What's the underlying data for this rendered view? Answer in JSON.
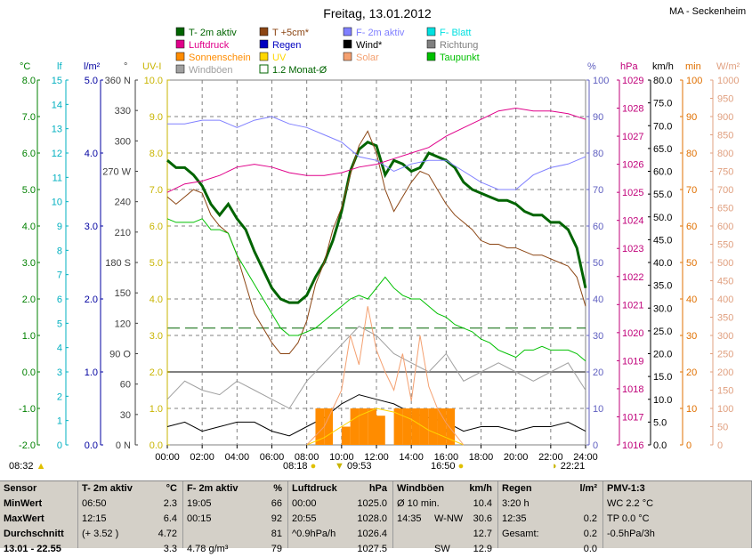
{
  "title": "Freitag, 13.01.2012",
  "station": "MA - Seckenheim",
  "legend": [
    {
      "label": "T- 2m aktiv",
      "color": "#006400",
      "type": "fill"
    },
    {
      "label": "T +5cm*",
      "color": "#8b4513",
      "type": "fill"
    },
    {
      "label": "F- 2m aktiv",
      "color": "#8080ff",
      "type": "fill"
    },
    {
      "label": "F- Blatt",
      "color": "#00e0e0",
      "type": "fill"
    },
    {
      "label": "Luftdruck",
      "color": "#e0008a",
      "type": "fill"
    },
    {
      "label": "Regen",
      "color": "#0000c0",
      "type": "fill"
    },
    {
      "label": "Wind*",
      "color": "#000000",
      "type": "fill"
    },
    {
      "label": "Richtung",
      "color": "#808080",
      "type": "fill"
    },
    {
      "label": "Sonnenschein",
      "color": "#ff8c00",
      "type": "fill"
    },
    {
      "label": "UV",
      "color": "#ffd700",
      "type": "fill"
    },
    {
      "label": "Solar",
      "color": "#f4a070",
      "type": "fill"
    },
    {
      "label": "Taupunkt",
      "color": "#00c000",
      "type": "fill"
    },
    {
      "label": "Windböen",
      "color": "#a0a0a0",
      "type": "fill"
    },
    {
      "label": "1.2 Monat-Ø",
      "color": "#006400",
      "type": "outline"
    }
  ],
  "axes": {
    "temp": {
      "unit": "°C",
      "color": "#008000",
      "ticks": [
        "8.0",
        "7.0",
        "6.0",
        "5.0",
        "4.0",
        "3.0",
        "2.0",
        "1.0",
        "0.0",
        "-1.0",
        "-2.0"
      ]
    },
    "leaf": {
      "unit": "lf",
      "color": "#00b0c0",
      "ticks": [
        "15",
        "14",
        "13",
        "12",
        "11",
        "10",
        "9",
        "8",
        "7",
        "6",
        "5",
        "4",
        "3",
        "2",
        "1",
        "0"
      ]
    },
    "rain": {
      "unit": "l/m²",
      "color": "#0000a0",
      "ticks": [
        "5.0",
        "4.0",
        "3.0",
        "2.0",
        "1.0",
        "0.0"
      ]
    },
    "dir": {
      "unit": "°",
      "color": "#404040",
      "ticks": [
        "360 N",
        "330",
        "300",
        "270 W",
        "240",
        "210",
        "180 S",
        "150",
        "120",
        "90  O",
        "60",
        "30",
        "0    N"
      ]
    },
    "uv": {
      "unit": "UV-I",
      "color": "#c8b400",
      "ticks": [
        "10.0",
        "9.0",
        "8.0",
        "7.0",
        "6.0",
        "5.0",
        "4.0",
        "3.0",
        "2.0",
        "1.0",
        "0.0"
      ]
    },
    "hum": {
      "unit": "%",
      "color": "#6060c0",
      "ticks": [
        "100",
        "90",
        "80",
        "70",
        "60",
        "50",
        "40",
        "30",
        "20",
        "10",
        "0"
      ]
    },
    "press": {
      "unit": "hPa",
      "color": "#c0007a",
      "ticks": [
        "1029",
        "1028",
        "1027",
        "1026",
        "1025",
        "1024",
        "1023",
        "1022",
        "1021",
        "1020",
        "1019",
        "1018",
        "1017",
        "1016"
      ]
    },
    "wind": {
      "unit": "km/h",
      "color": "#000000",
      "ticks": [
        "80.0",
        "75.0",
        "70.0",
        "65.0",
        "60.0",
        "55.0",
        "50.0",
        "45.0",
        "40.0",
        "35.0",
        "30.0",
        "25.0",
        "20.0",
        "15.0",
        "10.0",
        "5.0",
        "0.0"
      ]
    },
    "min": {
      "unit": "min",
      "color": "#e07000",
      "ticks": [
        "100",
        "90",
        "80",
        "70",
        "60",
        "50",
        "40",
        "30",
        "20",
        "10",
        "0"
      ]
    },
    "solar": {
      "unit": "W/m²",
      "color": "#e0a080",
      "ticks": [
        "1000",
        "950",
        "900",
        "850",
        "800",
        "750",
        "700",
        "650",
        "600",
        "550",
        "500",
        "450",
        "400",
        "350",
        "300",
        "250",
        "200",
        "150",
        "100",
        "50",
        "0"
      ]
    },
    "time": {
      "ticks": [
        "00:00",
        "02:00",
        "04:00",
        "06:00",
        "08:00",
        "10:00",
        "12:00",
        "14:00",
        "16:00",
        "18:00",
        "20:00",
        "22:00",
        "24:00"
      ]
    }
  },
  "sun": {
    "sunrise": "08:32",
    "sunset": "16:50",
    "t1": "08:18",
    "t2": "09:53",
    "t3": "22:21"
  },
  "chart_data": {
    "type": "line",
    "title": "Freitag, 13.01.2012",
    "xlabel": "",
    "xlim": [
      0,
      24
    ],
    "series": [
      {
        "name": "T- 2m aktiv",
        "unit": "°C",
        "ylim": [
          -2,
          8
        ],
        "x": [
          0,
          0.5,
          1,
          1.5,
          2,
          2.5,
          3,
          3.5,
          4,
          4.5,
          5,
          5.5,
          6,
          6.5,
          7,
          7.5,
          8,
          8.5,
          9,
          9.5,
          10,
          10.5,
          11,
          11.5,
          12,
          12.5,
          13,
          13.5,
          14,
          14.5,
          15,
          15.5,
          16,
          16.5,
          17,
          17.5,
          18,
          18.5,
          19,
          19.5,
          20,
          20.5,
          21,
          21.5,
          22,
          22.5,
          23,
          23.5,
          24
        ],
        "y": [
          5.8,
          5.6,
          5.6,
          5.4,
          5.1,
          4.6,
          4.3,
          4.6,
          4.2,
          3.9,
          3.3,
          2.8,
          2.3,
          2.0,
          1.9,
          1.9,
          2.1,
          2.6,
          3.0,
          3.6,
          4.4,
          5.5,
          6.1,
          6.3,
          6.2,
          5.4,
          5.8,
          5.7,
          5.5,
          5.6,
          6.0,
          5.9,
          5.8,
          5.6,
          5.2,
          5.0,
          4.9,
          4.8,
          4.7,
          4.7,
          4.6,
          4.4,
          4.3,
          4.3,
          4.1,
          4.1,
          3.9,
          3.4,
          2.3
        ]
      },
      {
        "name": "T +5cm*",
        "unit": "°C",
        "ylim": [
          -2,
          8
        ],
        "x": [
          0,
          0.5,
          1,
          1.5,
          2,
          2.5,
          3,
          3.5,
          4,
          4.5,
          5,
          5.5,
          6,
          6.5,
          7,
          7.5,
          8,
          8.5,
          9,
          9.5,
          10,
          10.5,
          11,
          11.5,
          12,
          12.5,
          13,
          13.5,
          14,
          14.5,
          15,
          15.5,
          16,
          16.5,
          17,
          17.5,
          18,
          18.5,
          19,
          19.5,
          20,
          20.5,
          21,
          21.5,
          22,
          22.5,
          23,
          23.5,
          24
        ],
        "y": [
          4.8,
          4.6,
          4.8,
          5.0,
          4.9,
          4.3,
          4.0,
          3.8,
          3.2,
          2.4,
          1.6,
          1.2,
          0.8,
          0.5,
          0.5,
          0.8,
          1.4,
          2.4,
          3.0,
          3.9,
          4.5,
          5.4,
          6.2,
          6.6,
          6.0,
          5.0,
          4.4,
          4.8,
          5.2,
          5.5,
          5.4,
          5.0,
          4.6,
          4.3,
          4.1,
          3.9,
          3.6,
          3.5,
          3.5,
          3.4,
          3.4,
          3.3,
          3.2,
          3.2,
          3.1,
          3.0,
          2.9,
          2.6,
          1.8
        ]
      },
      {
        "name": "Taupunkt",
        "unit": "°C",
        "ylim": [
          -2,
          8
        ],
        "x": [
          0,
          0.5,
          1,
          1.5,
          2,
          2.5,
          3,
          3.5,
          4,
          4.5,
          5,
          5.5,
          6,
          6.5,
          7,
          7.5,
          8,
          8.5,
          9,
          9.5,
          10,
          10.5,
          11,
          11.5,
          12,
          12.5,
          13,
          13.5,
          14,
          14.5,
          15,
          15.5,
          16,
          16.5,
          17,
          17.5,
          18,
          18.5,
          19,
          19.5,
          20,
          20.5,
          21,
          21.5,
          22,
          22.5,
          23,
          23.5,
          24
        ],
        "y": [
          4.2,
          4.1,
          4.1,
          4.1,
          4.2,
          3.9,
          3.9,
          3.8,
          3.2,
          2.8,
          2.4,
          2.0,
          1.6,
          1.2,
          1.0,
          1.0,
          1.1,
          1.2,
          1.4,
          1.6,
          1.8,
          2.0,
          2.1,
          2.0,
          2.3,
          2.6,
          2.3,
          2.1,
          2.0,
          2.0,
          1.8,
          1.6,
          1.5,
          1.3,
          1.2,
          1.1,
          0.9,
          0.8,
          0.6,
          0.5,
          0.4,
          0.6,
          0.6,
          0.7,
          0.6,
          0.6,
          0.6,
          0.5,
          0.3
        ]
      },
      {
        "name": "F- 2m aktiv",
        "unit": "%",
        "ylim": [
          0,
          100
        ],
        "x": [
          0,
          1,
          2,
          3,
          4,
          5,
          6,
          7,
          8,
          9,
          10,
          11,
          12,
          13,
          14,
          15,
          16,
          17,
          18,
          19,
          20,
          21,
          22,
          23,
          24
        ],
        "y": [
          88,
          88,
          89,
          89,
          87,
          89,
          90,
          88,
          87,
          85,
          83,
          79,
          78,
          75,
          77,
          78,
          78,
          75,
          72,
          70,
          70,
          74,
          76,
          77,
          79
        ]
      },
      {
        "name": "Luftdruck",
        "unit": "hPa",
        "ylim": [
          1016,
          1029
        ],
        "x": [
          0,
          1,
          2,
          3,
          4,
          5,
          6,
          7,
          8,
          9,
          10,
          11,
          12,
          13,
          14,
          15,
          16,
          17,
          18,
          19,
          20,
          21,
          22,
          23,
          24
        ],
        "y": [
          1025.0,
          1025.3,
          1025.4,
          1025.6,
          1025.9,
          1026.0,
          1025.9,
          1025.7,
          1025.6,
          1025.6,
          1025.7,
          1025.9,
          1026.0,
          1026.2,
          1026.4,
          1026.6,
          1027.0,
          1027.3,
          1027.6,
          1027.9,
          1028.0,
          1027.9,
          1027.9,
          1027.8,
          1027.6
        ]
      },
      {
        "name": "Wind*",
        "unit": "km/h",
        "ylim": [
          0,
          80
        ],
        "x": [
          0,
          1,
          2,
          3,
          4,
          5,
          6,
          7,
          8,
          9,
          10,
          11,
          12,
          13,
          14,
          15,
          16,
          17,
          18,
          19,
          20,
          21,
          22,
          23,
          24
        ],
        "y": [
          4,
          5,
          3,
          4,
          5,
          5,
          3,
          2,
          4,
          6,
          9,
          11,
          10,
          9,
          7,
          6,
          5,
          3,
          4,
          4,
          3,
          4,
          4,
          5,
          3
        ]
      },
      {
        "name": "Windböen",
        "unit": "km/h",
        "ylim": [
          0,
          80
        ],
        "x": [
          0,
          1,
          2,
          3,
          4,
          5,
          6,
          7,
          8,
          9,
          10,
          11,
          12,
          13,
          14,
          15,
          16,
          17,
          18,
          19,
          20,
          21,
          22,
          23,
          24
        ],
        "y": [
          10,
          14,
          12,
          11,
          14,
          12,
          10,
          8,
          14,
          18,
          22,
          26,
          24,
          20,
          18,
          16,
          20,
          14,
          16,
          18,
          16,
          14,
          16,
          18,
          12
        ]
      },
      {
        "name": "Sonnenschein",
        "unit": "min",
        "ylim": [
          0,
          100
        ],
        "x": [
          8.5,
          9,
          9.5,
          10,
          10.5,
          11,
          11.5,
          12,
          12.5,
          13,
          13.5,
          14,
          14.5,
          15,
          15.5,
          16,
          16.5
        ],
        "y": [
          10,
          10,
          0,
          5,
          10,
          10,
          10,
          8,
          0,
          10,
          10,
          10,
          10,
          10,
          10,
          10,
          10
        ]
      },
      {
        "name": "UV",
        "unit": "UV-I",
        "ylim": [
          0,
          10
        ],
        "x": [
          8,
          9,
          10,
          11,
          12,
          13,
          14,
          15,
          16,
          17
        ],
        "y": [
          0,
          0.2,
          0.5,
          0.8,
          1.0,
          0.9,
          0.7,
          0.4,
          0.2,
          0
        ]
      },
      {
        "name": "Solar",
        "unit": "W/m²",
        "ylim": [
          0,
          1000
        ],
        "x": [
          8,
          9,
          10,
          10.5,
          11,
          11.5,
          12,
          12.5,
          13,
          13.5,
          14,
          14.5,
          15,
          15.5,
          16,
          17
        ],
        "y": [
          0,
          50,
          150,
          300,
          220,
          380,
          260,
          200,
          150,
          250,
          120,
          300,
          160,
          100,
          60,
          0
        ]
      }
    ],
    "grid": true,
    "legend": "top"
  },
  "stats": [
    {
      "header": "Sensor",
      "unit": "",
      "rows": [
        {
          "l": "MinWert"
        },
        {
          "l": "MaxWert"
        },
        {
          "l": "Durchschnitt"
        },
        {
          "l": "13.01 - 22.55"
        }
      ]
    },
    {
      "header": "T- 2m aktiv",
      "unit": "°C",
      "rows": [
        {
          "l": "06:50",
          "r": "2.3"
        },
        {
          "l": "12:15",
          "r": "6.4"
        },
        {
          "l": "(+ 3.52 )",
          "r": "4.72"
        },
        {
          "l": "",
          "r": "3.3"
        }
      ]
    },
    {
      "header": "F- 2m aktiv",
      "unit": "%",
      "rows": [
        {
          "l": "19:05",
          "r": "66"
        },
        {
          "l": "00:15",
          "r": "92"
        },
        {
          "l": "",
          "r": "81"
        },
        {
          "l": "4.78 g/m³",
          "r": "79"
        }
      ]
    },
    {
      "header": "Luftdruck",
      "unit": "hPa",
      "rows": [
        {
          "l": "00:00",
          "r": "1025.0"
        },
        {
          "l": "20:55",
          "r": "1028.0"
        },
        {
          "l": "^0.9hPa/h",
          "r": "1026.4"
        },
        {
          "l": "",
          "r": "1027.5"
        }
      ]
    },
    {
      "header": "Windböen",
      "unit": "km/h",
      "rows": [
        {
          "l": "Ø 10 min.",
          "r": "10.4"
        },
        {
          "l": "14:35",
          "m": "W-NW",
          "r": "30.6"
        },
        {
          "l": "",
          "r": "12.7"
        },
        {
          "l": "",
          "m": "SW",
          "r": "12.9"
        }
      ]
    },
    {
      "header": "Regen",
      "unit": "l/m²",
      "rows": [
        {
          "l": "3:20 h",
          "r": ""
        },
        {
          "l": "12:35",
          "r": "0.2"
        },
        {
          "l": "Gesamt:",
          "r": "0.2"
        },
        {
          "l": "",
          "r": "0.0"
        }
      ]
    },
    {
      "header": "PMV-1:3",
      "unit": "",
      "rows": [
        {
          "l": "WC 2.2 °C"
        },
        {
          "l": "TP 0.0 °C"
        },
        {
          "l": "-0.5hPa/3h"
        },
        {
          "l": ""
        }
      ]
    }
  ]
}
